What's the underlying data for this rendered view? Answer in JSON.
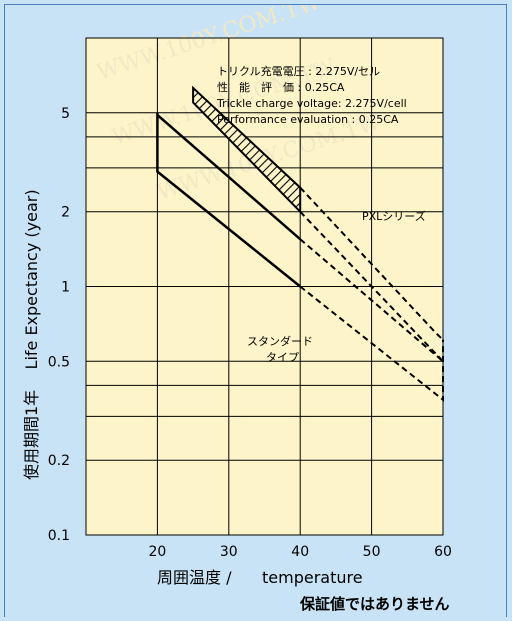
{
  "chart_data": {
    "type": "line",
    "title": "",
    "xlabel": "周囲温度 /      temperature",
    "ylabel": "使用期間1年    Life Expectancy (year)",
    "x_ticks": [
      20,
      30,
      40,
      50,
      60
    ],
    "y_ticks": [
      0.1,
      0.2,
      0.5,
      1,
      2,
      5
    ],
    "y_tick_labels": [
      "0.1",
      "0.2",
      "0.5",
      "1",
      "2",
      "5"
    ],
    "y_minor_gridlines": [
      0.3,
      0.4,
      3,
      4
    ],
    "xlim": [
      10,
      60
    ],
    "ylim": [
      0.1,
      10
    ],
    "y_scale": "log",
    "grid": true,
    "annotation_lines": [
      "トリクル充電電圧 : 2.275V/セル",
      "性　能　評　価 : 0.25CA",
      "Trickle charge voltage: 2.275V/cell",
      "Performance evaluation : 0.25CA"
    ],
    "series_labels": {
      "pxl": "PXLシリーズ",
      "standard_line1": "スタンダード",
      "standard_line2": "タイプ"
    },
    "series": [
      {
        "name": "PXLシリーズ",
        "style": "hatched",
        "points": [
          [
            25,
            6.3
          ],
          [
            25,
            5.5
          ],
          [
            40,
            2.0
          ],
          [
            40,
            2.5
          ]
        ]
      },
      {
        "name": "",
        "style": "solid",
        "points": [
          [
            20,
            5.0
          ],
          [
            20,
            2.9
          ],
          [
            40,
            1.0
          ]
        ]
      },
      {
        "name": "",
        "style": "solid",
        "points": [
          [
            20,
            4.9
          ],
          [
            40,
            1.55
          ]
        ]
      },
      {
        "name": "",
        "style": "dashed",
        "points": [
          [
            40,
            1.0
          ],
          [
            60,
            0.35
          ],
          [
            60,
            0.61
          ]
        ]
      },
      {
        "name": "",
        "style": "dashed",
        "points": [
          [
            40,
            1.55
          ],
          [
            60,
            0.5
          ]
        ]
      },
      {
        "name": "",
        "style": "dashed",
        "points": [
          [
            40,
            2.0
          ],
          [
            60,
            0.5
          ]
        ]
      },
      {
        "name": "",
        "style": "dashed",
        "points": [
          [
            40,
            2.5
          ],
          [
            59,
            0.65
          ],
          [
            60,
            0.61
          ]
        ]
      }
    ]
  },
  "footer_note": "保証値ではありません",
  "watermarks": [
    "WWW.100Y.COM.TW",
    "WWW.100Y.COM.TW",
    "WWW.100Y.COM.TW"
  ],
  "colors": {
    "background": "#c8e3f6",
    "plot_area": "#fdf5c9",
    "line": "#000000",
    "border": "#4a7fb8"
  }
}
